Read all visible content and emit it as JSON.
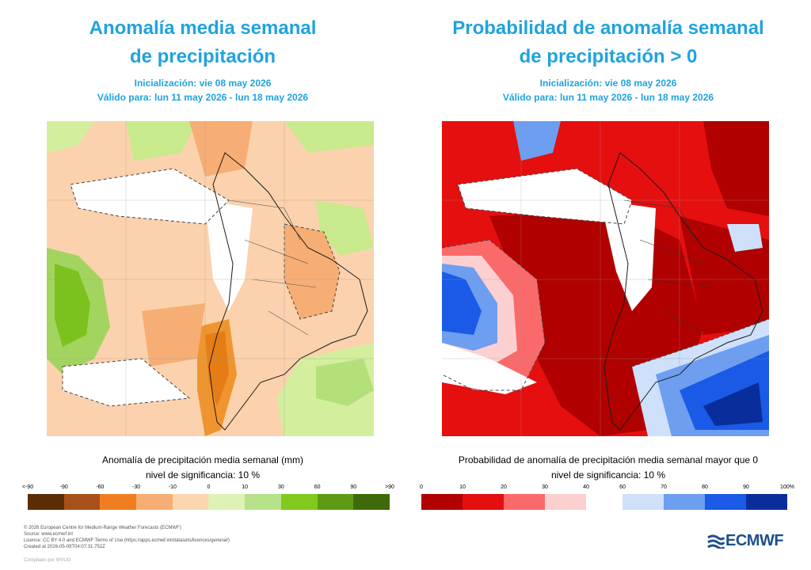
{
  "left": {
    "title_line1": "Anomalía media semanal",
    "title_line2": "de precipitación",
    "init": "Inicialización: vie 08 may 2026",
    "valid": "Válido para: lun 11 may 2026 - lun 18 may 2026",
    "caption": "Anomalía de precipitación media semanal (mm)",
    "significance": "nivel de significancia: 10 %",
    "colorbar": {
      "ticks": [
        "<-90",
        "-90",
        "-60",
        "-30",
        "-10",
        "0",
        "10",
        "30",
        "60",
        "90",
        ">90"
      ],
      "colors": [
        "#5c2d05",
        "#a8501a",
        "#f07e20",
        "#f7ae74",
        "#fbd6b0",
        "#ddf2b4",
        "#b6e28a",
        "#82c91e",
        "#5f9a16",
        "#3f6a0c"
      ]
    }
  },
  "right": {
    "title_line1": "Probabilidad de anomalía semanal",
    "title_line2": "de precipitación > 0",
    "init": "Inicialización: vie 08 may 2026",
    "valid": "Válido para: lun 11 may 2026 - lun 18 may 2026",
    "caption": "Probabilidad de anomalía de precipitación media semanal mayor que 0",
    "significance": "nivel de significancia: 10 %",
    "colorbar": {
      "ticks_low": [
        "0",
        "10",
        "20",
        "30",
        "40"
      ],
      "ticks_high": [
        "60",
        "70",
        "80",
        "90",
        "100%"
      ],
      "colors_low": [
        "#b00000",
        "#e50f0f",
        "#fa6a6a",
        "#fcd0d0"
      ],
      "colors_high": [
        "#cfe0fb",
        "#6d9ef0",
        "#1a5ae6",
        "#0a2d9c"
      ]
    }
  },
  "footer": {
    "copyright": "© 2026 European Centre for Medium-Range Weather Forecasts (ECMWF)",
    "source": "Source: www.ecmwf.int",
    "licence": "Licence: CC BY 4.0 and ECMWF Terms of Use (https://apps.ecmwf.int/datasets/licences/general/)",
    "created": "Created at 2026-05-09T04:07:31.752Z",
    "compiled": "Compilado por WVUG"
  },
  "logo": {
    "text": "ECMWF",
    "color": "#1d4f8c"
  }
}
